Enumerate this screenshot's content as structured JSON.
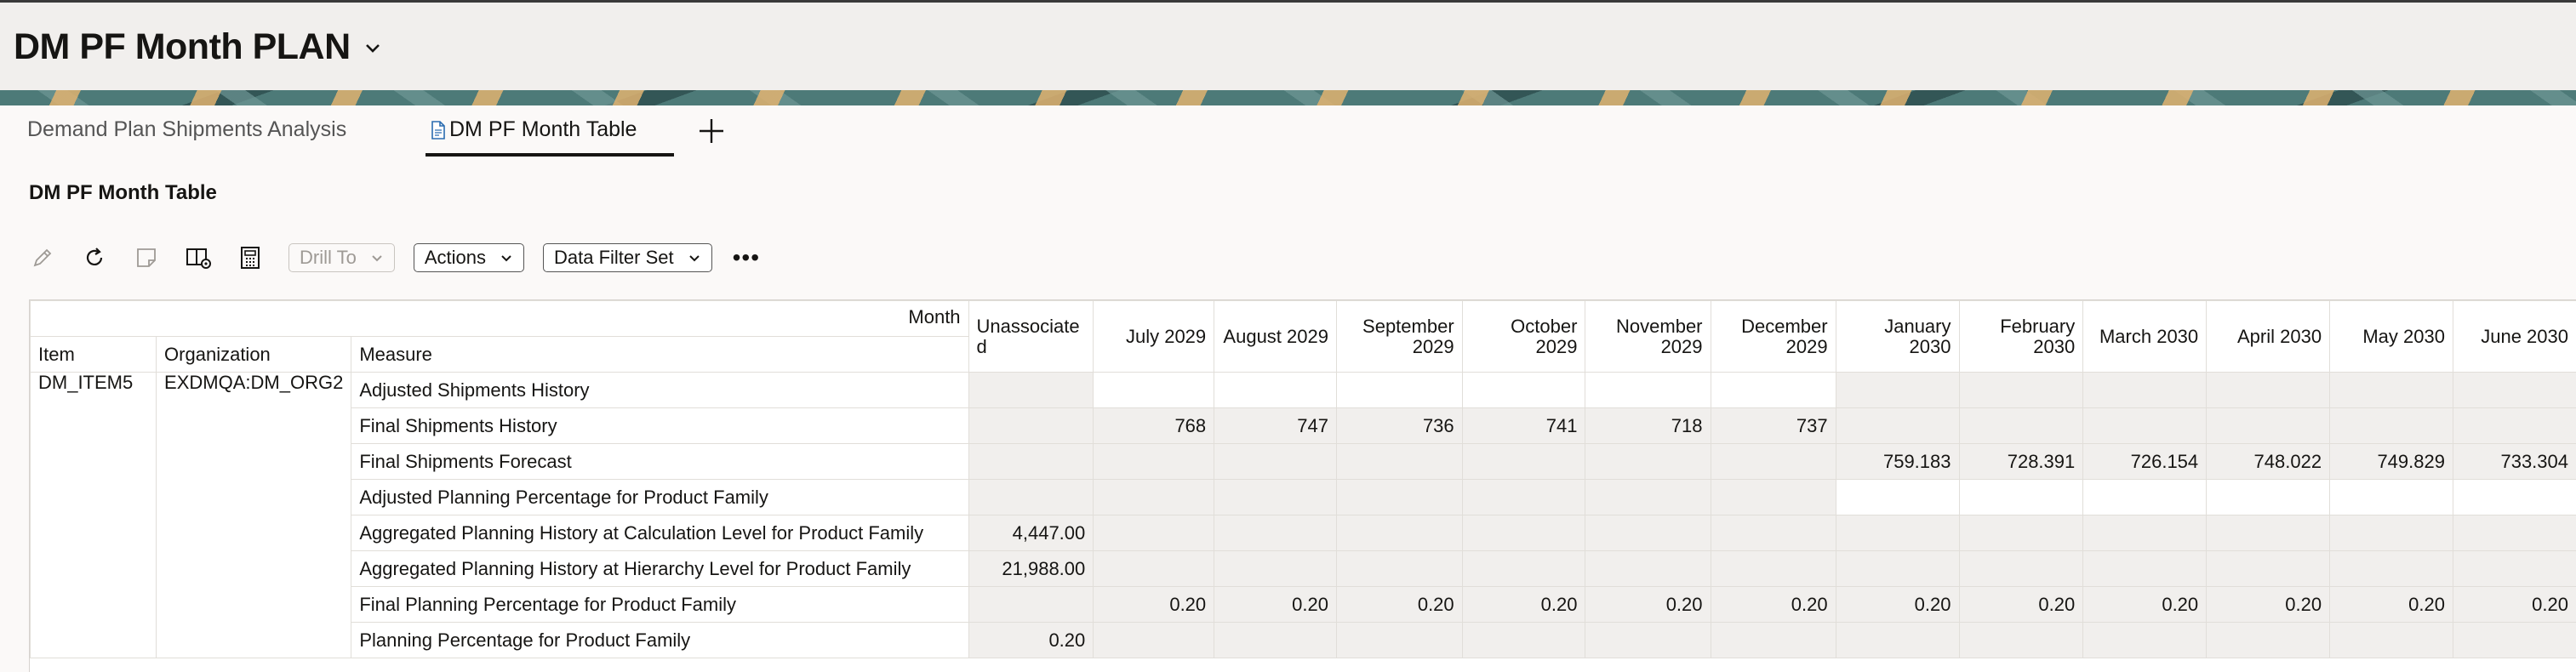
{
  "header": {
    "title": "DM PF Month PLAN"
  },
  "tabs": [
    {
      "label": "Demand Plan Shipments Analysis",
      "active": false
    },
    {
      "label": "DM PF Month Table",
      "active": true
    }
  ],
  "section": {
    "title": "DM PF Month Table"
  },
  "toolbar": {
    "drill_to": "Drill To",
    "actions": "Actions",
    "data_filter_set": "Data Filter Set",
    "more": "•••"
  },
  "grid": {
    "month_label": "Month",
    "dimension_headers": {
      "item": "Item",
      "organization": "Organization",
      "measure": "Measure"
    },
    "columns": [
      "Unassociated",
      "July 2029",
      "August 2029",
      "September 2029",
      "October 2029",
      "November 2029",
      "December 2029",
      "January 2030",
      "February 2030",
      "March 2030",
      "April 2030",
      "May 2030",
      "June 2030"
    ],
    "item": "DM_ITEM5",
    "organization": "EXDMQA:DM_ORG2",
    "rows": [
      {
        "measure": "Adjusted Shipments History",
        "values": [
          "",
          "",
          "",
          "",
          "",
          "",
          "",
          "",
          "",
          "",
          "",
          "",
          ""
        ]
      },
      {
        "measure": "Final Shipments History",
        "values": [
          "",
          "768",
          "747",
          "736",
          "741",
          "718",
          "737",
          "",
          "",
          "",
          "",
          "",
          ""
        ]
      },
      {
        "measure": "Final Shipments Forecast",
        "values": [
          "",
          "",
          "",
          "",
          "",
          "",
          "",
          "759.183",
          "728.391",
          "726.154",
          "748.022",
          "749.829",
          "733.304"
        ]
      },
      {
        "measure": "Adjusted Planning Percentage for Product Family",
        "values": [
          "",
          "",
          "",
          "",
          "",
          "",
          "",
          "",
          "",
          "",
          "",
          "",
          ""
        ]
      },
      {
        "measure": "Aggregated Planning History at Calculation Level for Product Family",
        "values": [
          "4,447.00",
          "",
          "",
          "",
          "",
          "",
          "",
          "",
          "",
          "",
          "",
          "",
          ""
        ]
      },
      {
        "measure": "Aggregated Planning History at Hierarchy Level for Product Family",
        "values": [
          "21,988.00",
          "",
          "",
          "",
          "",
          "",
          "",
          "",
          "",
          "",
          "",
          "",
          ""
        ]
      },
      {
        "measure": "Final Planning Percentage for Product Family",
        "values": [
          "",
          "0.20",
          "0.20",
          "0.20",
          "0.20",
          "0.20",
          "0.20",
          "0.20",
          "0.20",
          "0.20",
          "0.20",
          "0.20",
          "0.20"
        ]
      },
      {
        "measure": "Planning Percentage for Product Family",
        "values": [
          "0.20",
          "",
          "",
          "",
          "",
          "",
          "",
          "",
          "",
          "",
          "",
          "",
          ""
        ]
      }
    ]
  }
}
